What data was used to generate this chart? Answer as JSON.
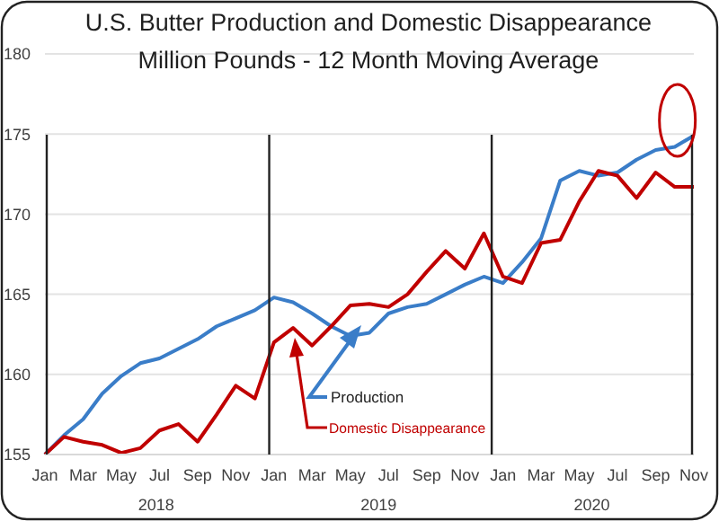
{
  "chart_data": {
    "type": "line",
    "title": "U.S. Butter Production and Domestic Disappearance",
    "subtitle": "Million Pounds - 12 Month Moving Average",
    "categories": [
      "Jan",
      null,
      "Mar",
      null,
      "May",
      null,
      "Jul",
      null,
      "Sep",
      null,
      "Nov",
      null,
      "Jan",
      null,
      "Mar",
      null,
      "May",
      null,
      "Jul",
      null,
      "Sep",
      null,
      "Nov",
      null,
      "Jan",
      null,
      "Mar",
      null,
      "May",
      null,
      "Jul",
      null,
      "Sep",
      null,
      "Nov"
    ],
    "series": [
      {
        "name": "Production",
        "color": "#3a7dc8",
        "values": [
          155.0,
          156.2,
          157.2,
          158.8,
          159.9,
          160.7,
          161.0,
          161.6,
          162.2,
          163.0,
          163.5,
          164.0,
          164.8,
          164.5,
          163.8,
          163.0,
          162.4,
          162.6,
          163.8,
          164.2,
          164.4,
          165.0,
          165.6,
          166.1,
          165.7,
          167.0,
          168.5,
          172.1,
          172.7,
          172.4,
          172.6,
          173.4,
          174.0,
          174.2,
          174.9
        ]
      },
      {
        "name": "Domestic Disappearance",
        "color": "#c00000",
        "values": [
          155.0,
          156.1,
          155.8,
          155.6,
          155.1,
          155.4,
          156.5,
          156.9,
          155.8,
          157.5,
          159.3,
          158.5,
          162.0,
          162.9,
          161.8,
          163.0,
          164.3,
          164.4,
          164.2,
          165.0,
          166.4,
          167.7,
          166.6,
          168.8,
          166.1,
          165.7,
          168.2,
          168.4,
          170.8,
          172.7,
          172.4,
          171.0,
          172.6,
          171.7,
          171.7
        ]
      }
    ],
    "ylim": [
      155,
      180
    ],
    "yticks": [
      155,
      160,
      165,
      170,
      175,
      180
    ],
    "grid": "y",
    "legend": false,
    "marker": "none",
    "line_style": "solid",
    "annotations": [
      "2018",
      "2019",
      "2020"
    ]
  }
}
